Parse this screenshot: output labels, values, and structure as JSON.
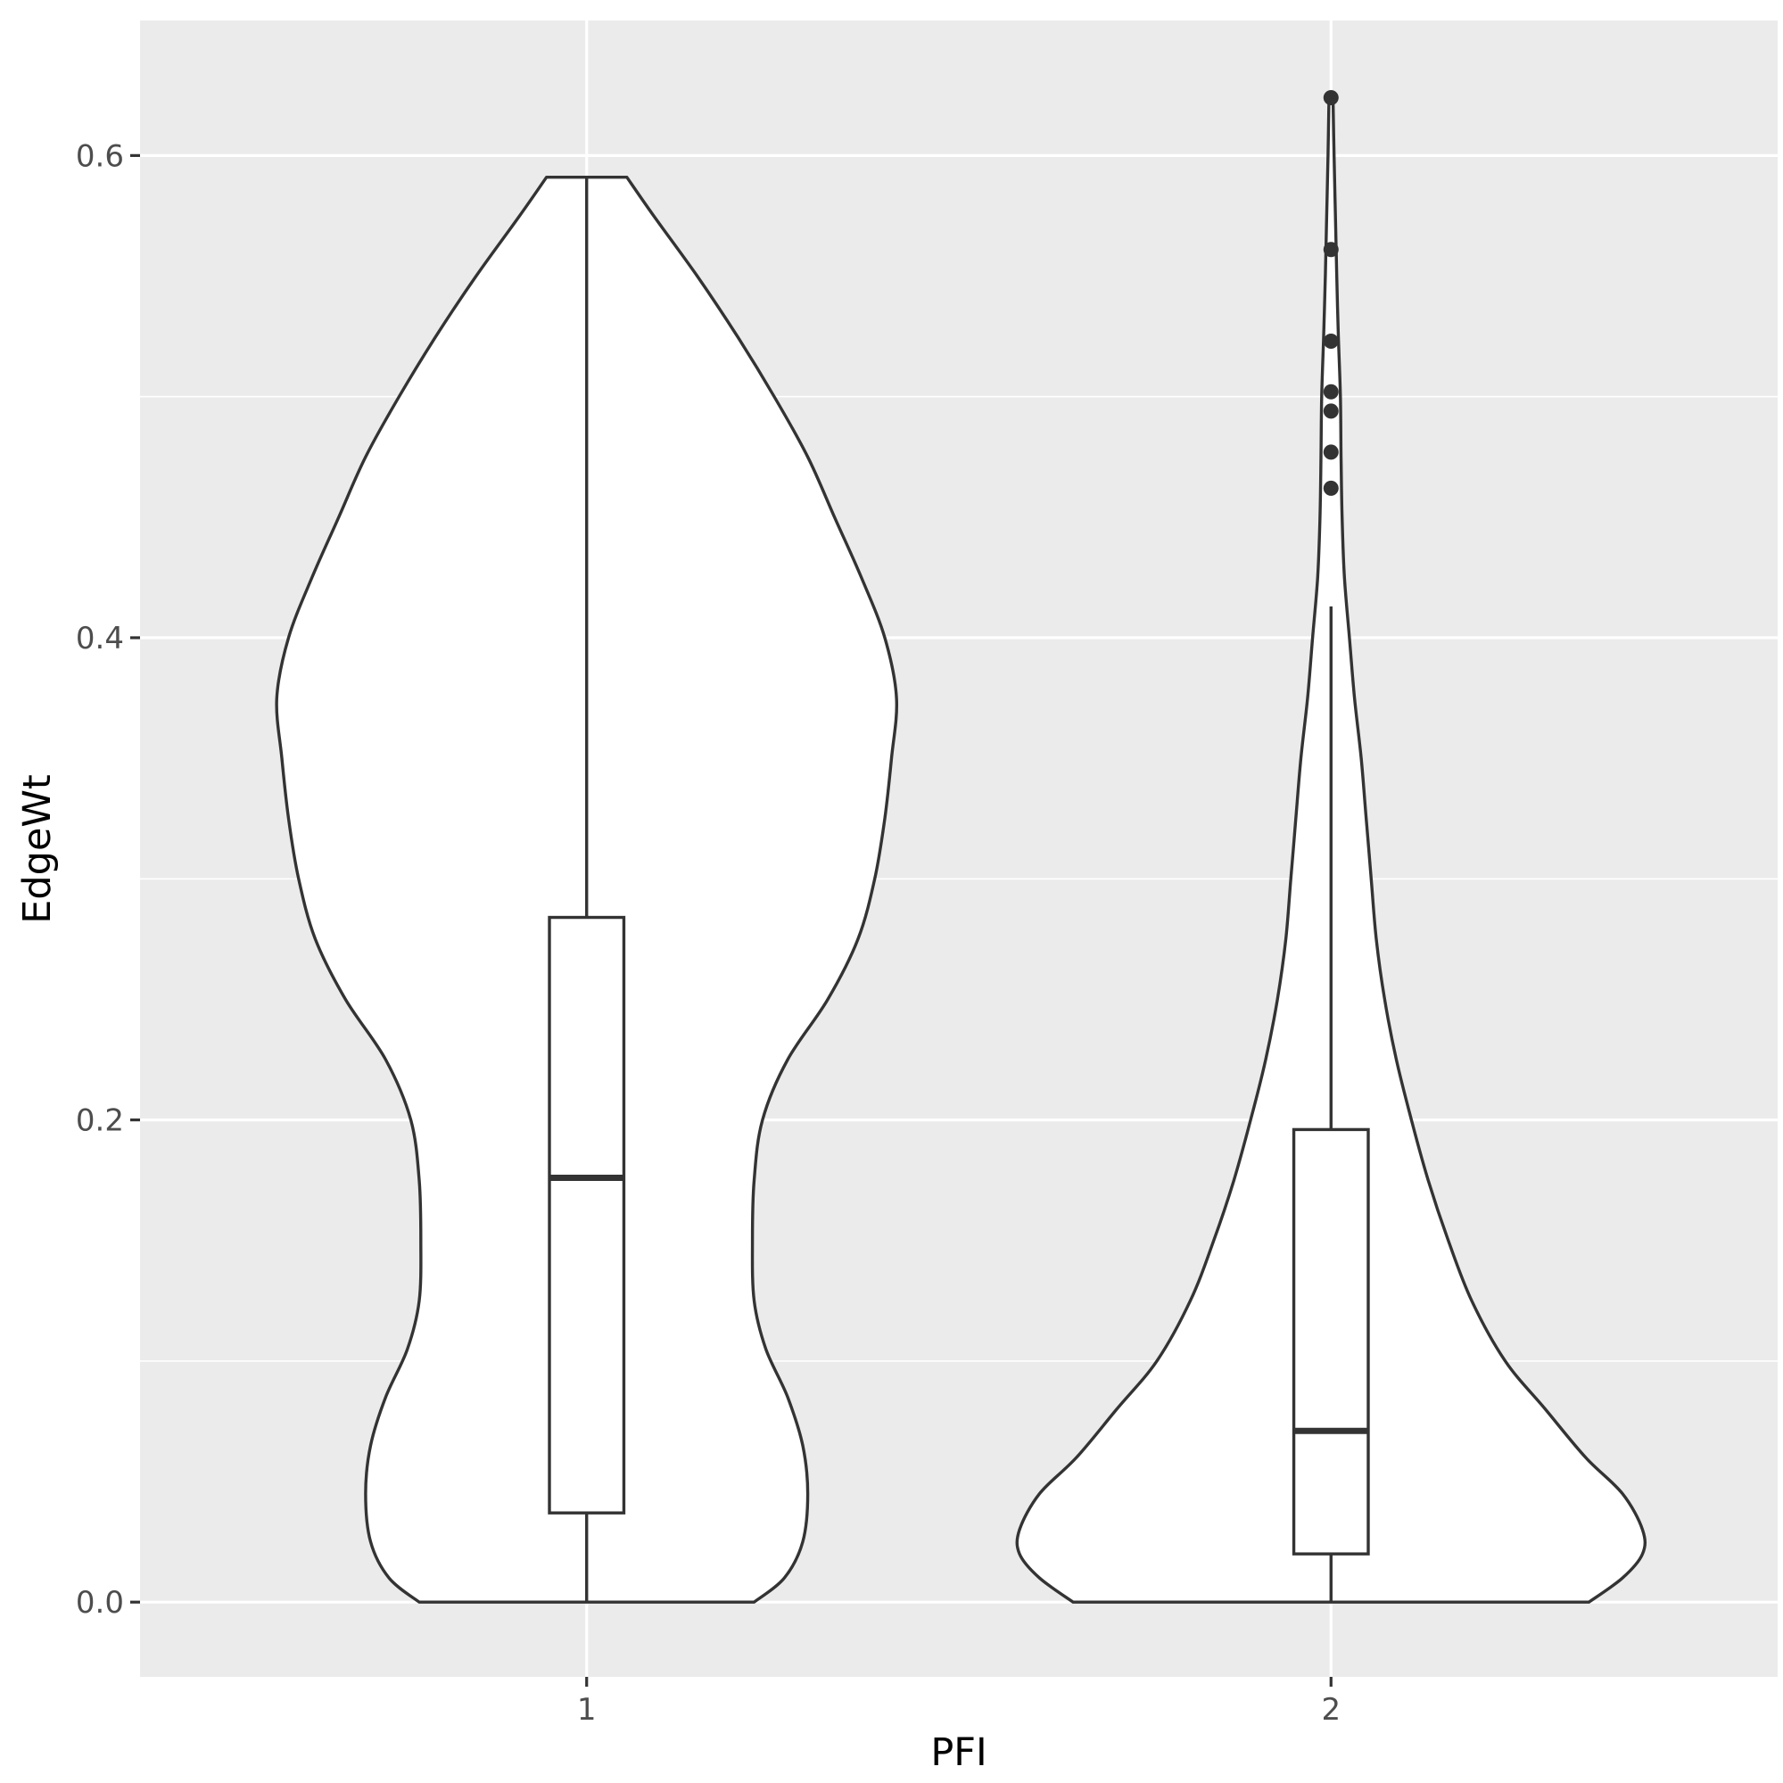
{
  "chart_data": {
    "type": "violin",
    "xlabel": "PFI",
    "ylabel": "EdgeWt",
    "categories": [
      "1",
      "2"
    ],
    "ylim": [
      -0.031,
      0.656
    ],
    "yticks": [
      0.0,
      0.2,
      0.4,
      0.6
    ],
    "ytick_labels": [
      "0.0",
      "0.2",
      "0.4",
      "0.6"
    ],
    "grid": true,
    "panel_background": "#ebebeb",
    "groups": [
      {
        "category": "1",
        "box": {
          "min": 0.0,
          "q1": 0.037,
          "median": 0.176,
          "q3": 0.284,
          "max": 0.591
        },
        "outliers": [],
        "density": [
          [
            0.0,
            0.5
          ],
          [
            0.01,
            0.59
          ],
          [
            0.025,
            0.645
          ],
          [
            0.045,
            0.66
          ],
          [
            0.065,
            0.645
          ],
          [
            0.085,
            0.6
          ],
          [
            0.105,
            0.535
          ],
          [
            0.125,
            0.5
          ],
          [
            0.15,
            0.495
          ],
          [
            0.175,
            0.5
          ],
          [
            0.2,
            0.525
          ],
          [
            0.225,
            0.6
          ],
          [
            0.25,
            0.72
          ],
          [
            0.275,
            0.81
          ],
          [
            0.3,
            0.86
          ],
          [
            0.325,
            0.89
          ],
          [
            0.35,
            0.91
          ],
          [
            0.375,
            0.925
          ],
          [
            0.4,
            0.89
          ],
          [
            0.425,
            0.82
          ],
          [
            0.45,
            0.74
          ],
          [
            0.475,
            0.66
          ],
          [
            0.5,
            0.56
          ],
          [
            0.525,
            0.45
          ],
          [
            0.55,
            0.33
          ],
          [
            0.575,
            0.2
          ],
          [
            0.591,
            0.12
          ]
        ]
      },
      {
        "category": "2",
        "box": {
          "min": 0.0,
          "q1": 0.02,
          "median": 0.071,
          "q3": 0.196,
          "max": 0.413
        },
        "outliers": [
          0.624,
          0.561,
          0.523,
          0.502,
          0.494,
          0.477,
          0.462
        ],
        "density": [
          [
            0.0,
            0.77
          ],
          [
            0.01,
            0.87
          ],
          [
            0.02,
            0.93
          ],
          [
            0.03,
            0.93
          ],
          [
            0.045,
            0.87
          ],
          [
            0.06,
            0.76
          ],
          [
            0.08,
            0.64
          ],
          [
            0.1,
            0.52
          ],
          [
            0.125,
            0.42
          ],
          [
            0.15,
            0.35
          ],
          [
            0.175,
            0.29
          ],
          [
            0.2,
            0.24
          ],
          [
            0.225,
            0.195
          ],
          [
            0.25,
            0.16
          ],
          [
            0.275,
            0.135
          ],
          [
            0.3,
            0.12
          ],
          [
            0.325,
            0.105
          ],
          [
            0.35,
            0.09
          ],
          [
            0.375,
            0.07
          ],
          [
            0.4,
            0.055
          ],
          [
            0.425,
            0.04
          ],
          [
            0.45,
            0.033
          ],
          [
            0.475,
            0.03
          ],
          [
            0.5,
            0.028
          ],
          [
            0.525,
            0.022
          ],
          [
            0.55,
            0.017
          ],
          [
            0.575,
            0.013
          ],
          [
            0.6,
            0.009
          ],
          [
            0.624,
            0.006
          ]
        ]
      }
    ]
  }
}
